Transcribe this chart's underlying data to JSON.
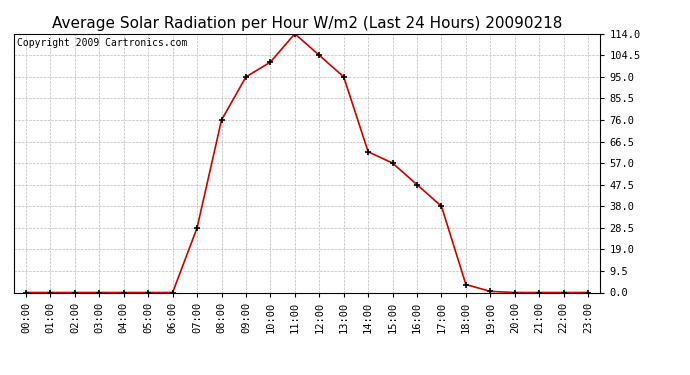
{
  "title": "Average Solar Radiation per Hour W/m2 (Last 24 Hours) 20090218",
  "copyright": "Copyright 2009 Cartronics.com",
  "hours": [
    "00:00",
    "01:00",
    "02:00",
    "03:00",
    "04:00",
    "05:00",
    "06:00",
    "07:00",
    "08:00",
    "09:00",
    "10:00",
    "11:00",
    "12:00",
    "13:00",
    "14:00",
    "15:00",
    "16:00",
    "17:00",
    "18:00",
    "19:00",
    "20:00",
    "21:00",
    "22:00",
    "23:00"
  ],
  "values": [
    0.0,
    0.0,
    0.0,
    0.0,
    0.0,
    0.0,
    0.0,
    28.5,
    76.0,
    95.0,
    101.5,
    114.0,
    104.5,
    95.0,
    62.0,
    57.0,
    47.5,
    38.0,
    3.5,
    0.5,
    0.0,
    0.0,
    0.0,
    0.0
  ],
  "line_color": "#cc0000",
  "marker_color": "#000000",
  "background_color": "#ffffff",
  "grid_color": "#bbbbbb",
  "yticks": [
    0.0,
    9.5,
    19.0,
    28.5,
    38.0,
    47.5,
    57.0,
    66.5,
    76.0,
    85.5,
    95.0,
    104.5,
    114.0
  ],
  "ymin": 0.0,
  "ymax": 114.0,
  "title_fontsize": 11,
  "copyright_fontsize": 7,
  "tick_fontsize": 7.5
}
